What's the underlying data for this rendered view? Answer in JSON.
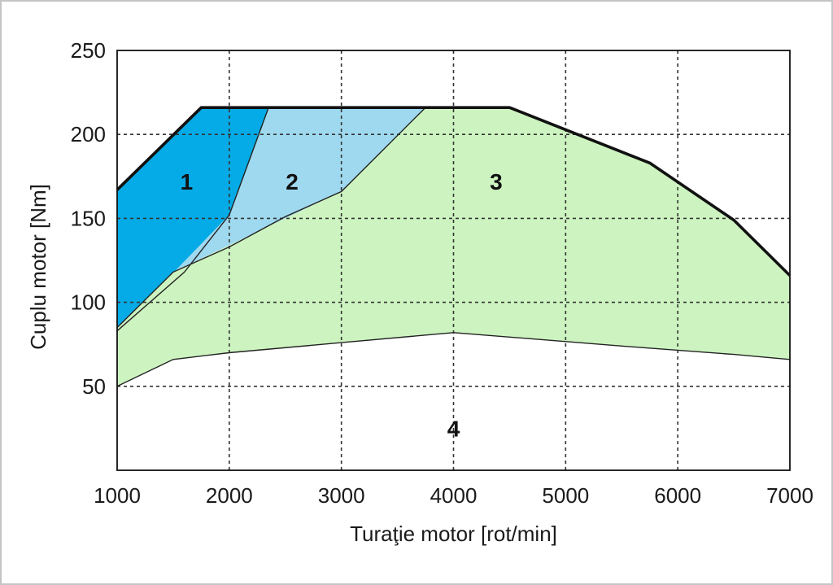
{
  "chart_data": {
    "type": "area",
    "xlabel": "Turaţie motor [rot/min]",
    "ylabel": "Cuplu motor [Nm]",
    "xlim": [
      1000,
      7000
    ],
    "ylim": [
      0,
      250
    ],
    "xticks": [
      1000,
      2000,
      3000,
      4000,
      5000,
      6000,
      7000
    ],
    "yticks": [
      50,
      100,
      150,
      200,
      250
    ],
    "grid": true,
    "grid_style": "dashed",
    "max_torque_curve": {
      "x": [
        1000,
        1750,
        4500,
        5750,
        6500,
        7000
      ],
      "y": [
        167,
        216,
        216,
        183,
        149,
        116
      ]
    },
    "regions": [
      {
        "label": "1",
        "color": "#05abe6",
        "label_pos": [
          1620,
          172
        ],
        "polygon": {
          "x": [
            1000,
            1750,
            2350,
            2000,
            1000
          ],
          "y": [
            167,
            216,
            216,
            152,
            83
          ]
        }
      },
      {
        "label": "2",
        "color": "#9fd9ef",
        "label_pos": [
          2560,
          172
        ],
        "polygon": {
          "x": [
            2350,
            3750,
            3000,
            1500,
            1000,
            1000,
            2000
          ],
          "y": [
            216,
            216,
            166,
            118,
            85,
            83,
            152
          ]
        }
      },
      {
        "label": "3",
        "color": "#cdf4c0",
        "label_pos": [
          4380,
          172
        ],
        "polygon": {
          "x": [
            3750,
            4500,
            5750,
            6500,
            7000,
            7000,
            6500,
            5500,
            4000,
            3000,
            2000,
            1500,
            1000,
            1000,
            1500,
            3000
          ],
          "y": [
            216,
            216,
            183,
            149,
            116,
            66,
            69,
            74,
            82,
            76,
            70,
            66,
            50,
            85,
            118,
            166
          ]
        }
      },
      {
        "label": "4",
        "color": "#ffffff",
        "label_pos": [
          4000,
          25
        ],
        "polygon": {
          "x": [
            1000,
            1500,
            2000,
            3000,
            4000,
            5500,
            6500,
            7000,
            7000,
            1000
          ],
          "y": [
            50,
            66,
            70,
            76,
            82,
            74,
            69,
            66,
            0,
            0
          ]
        }
      }
    ],
    "boundary_lines": [
      {
        "x": [
          1000,
          1500,
          2000,
          3000,
          4000,
          5500,
          6500,
          7000
        ],
        "y": [
          50,
          66,
          70,
          76,
          82,
          74,
          69,
          66
        ]
      },
      {
        "x": [
          1000,
          1500,
          2000,
          2500,
          3000,
          3750
        ],
        "y": [
          85,
          118,
          133,
          151,
          166,
          216
        ]
      },
      {
        "x": [
          1000,
          1600,
          2000,
          2350
        ],
        "y": [
          83,
          118,
          152,
          216
        ]
      }
    ]
  }
}
